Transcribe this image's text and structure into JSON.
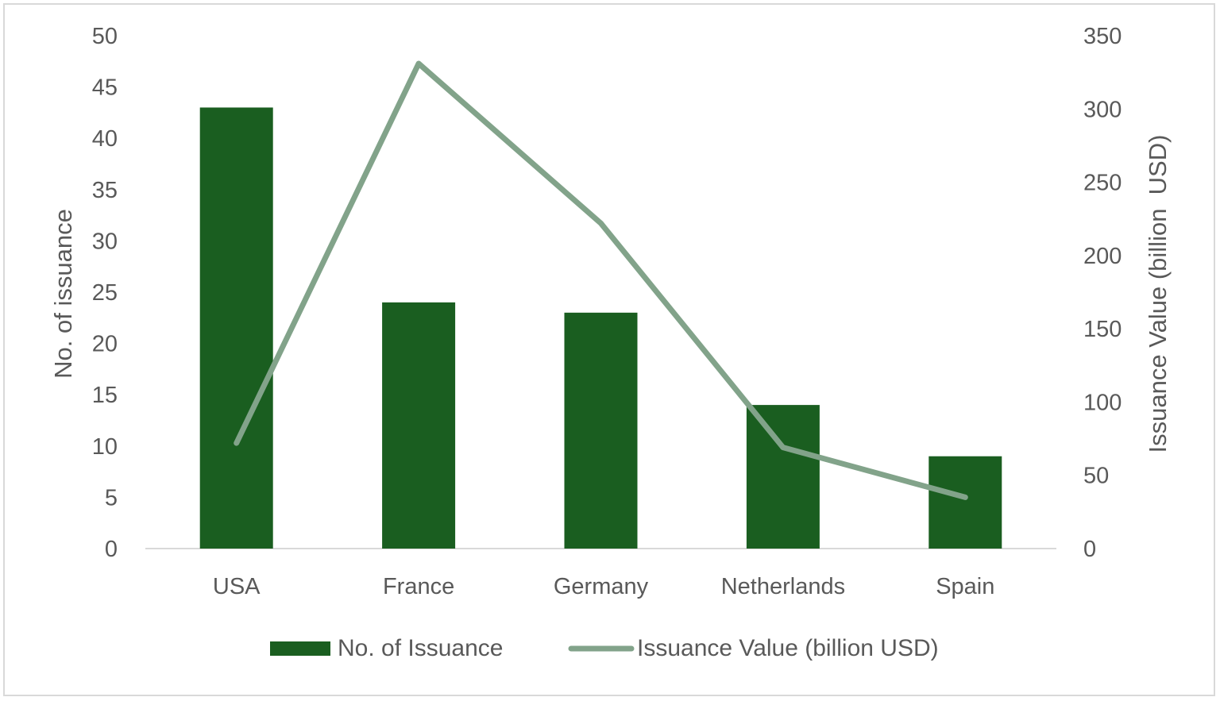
{
  "chart_data": {
    "type": "bar",
    "categories": [
      "USA",
      "France",
      "Germany",
      "Netherlands",
      "Spain"
    ],
    "series": [
      {
        "name": "No. of Issuance",
        "type": "bar",
        "axis": "left",
        "color": "#1a5e20",
        "values": [
          43,
          24,
          23,
          14,
          9
        ]
      },
      {
        "name": "Issuance Value (billion USD)",
        "type": "line",
        "axis": "right",
        "color": "#82a38a",
        "values": [
          72,
          331,
          222,
          69,
          35
        ]
      }
    ],
    "ylabel": "No. of issuance",
    "ylim": [
      0,
      50
    ],
    "yticks": [
      "0",
      "5",
      "10",
      "15",
      "20",
      "25",
      "30",
      "35",
      "40",
      "45",
      "50"
    ],
    "y2label": "Issuance Value (billion  USD)",
    "y2lim": [
      0,
      350
    ],
    "y2ticks": [
      "0",
      "50",
      "100",
      "150",
      "200",
      "250",
      "300",
      "350"
    ],
    "grid": false,
    "legend_position": "bottom"
  }
}
